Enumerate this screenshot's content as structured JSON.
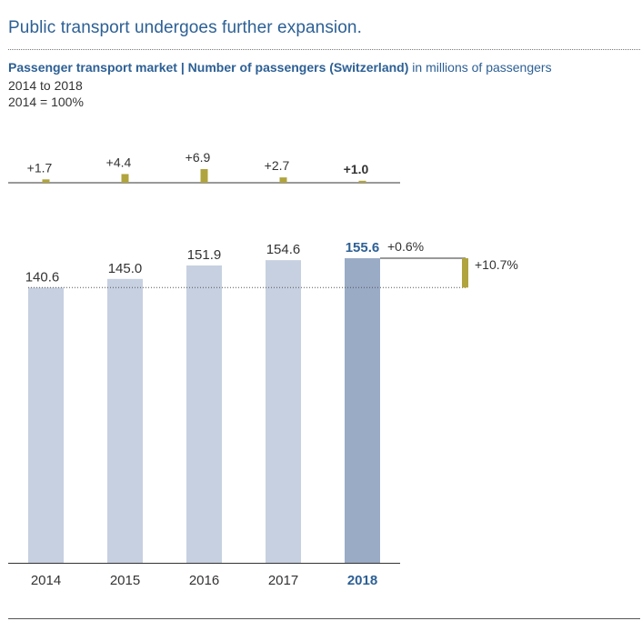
{
  "headline": "Public transport undergoes further expansion.",
  "subtitle": {
    "bold": "Passenger transport market | Number of passengers (Switzerland)",
    "rest": " in millions of passengers"
  },
  "period": "2014 to 2018",
  "base_note": "2014 = 100%",
  "colors": {
    "bar": "#c6d0e0",
    "bar_highlight": "#9aabc6",
    "accent": "#b0a43e",
    "title_blue": "#2d6095"
  },
  "chart_data": {
    "type": "bar",
    "title": "Passenger transport market | Number of passengers (Switzerland)",
    "ylabel": "in millions of passengers",
    "categories": [
      "2014",
      "2015",
      "2016",
      "2017",
      "2018"
    ],
    "values": [
      140.6,
      145.0,
      151.9,
      154.6,
      155.6
    ],
    "value_labels": [
      "140.6",
      "145.0",
      "151.9",
      "154.6",
      "155.6"
    ],
    "changes": [
      1.7,
      4.4,
      6.9,
      2.7,
      1.0
    ],
    "change_labels": [
      "+1.7",
      "+4.4",
      "+6.9",
      "+2.7",
      "+1.0"
    ],
    "highlight_index": 4,
    "yoy_change_label": "+0.6%",
    "total_change_label": "+10.7%",
    "ylim": [
      0,
      155.6
    ],
    "change_ylim": [
      0,
      6.9
    ]
  }
}
